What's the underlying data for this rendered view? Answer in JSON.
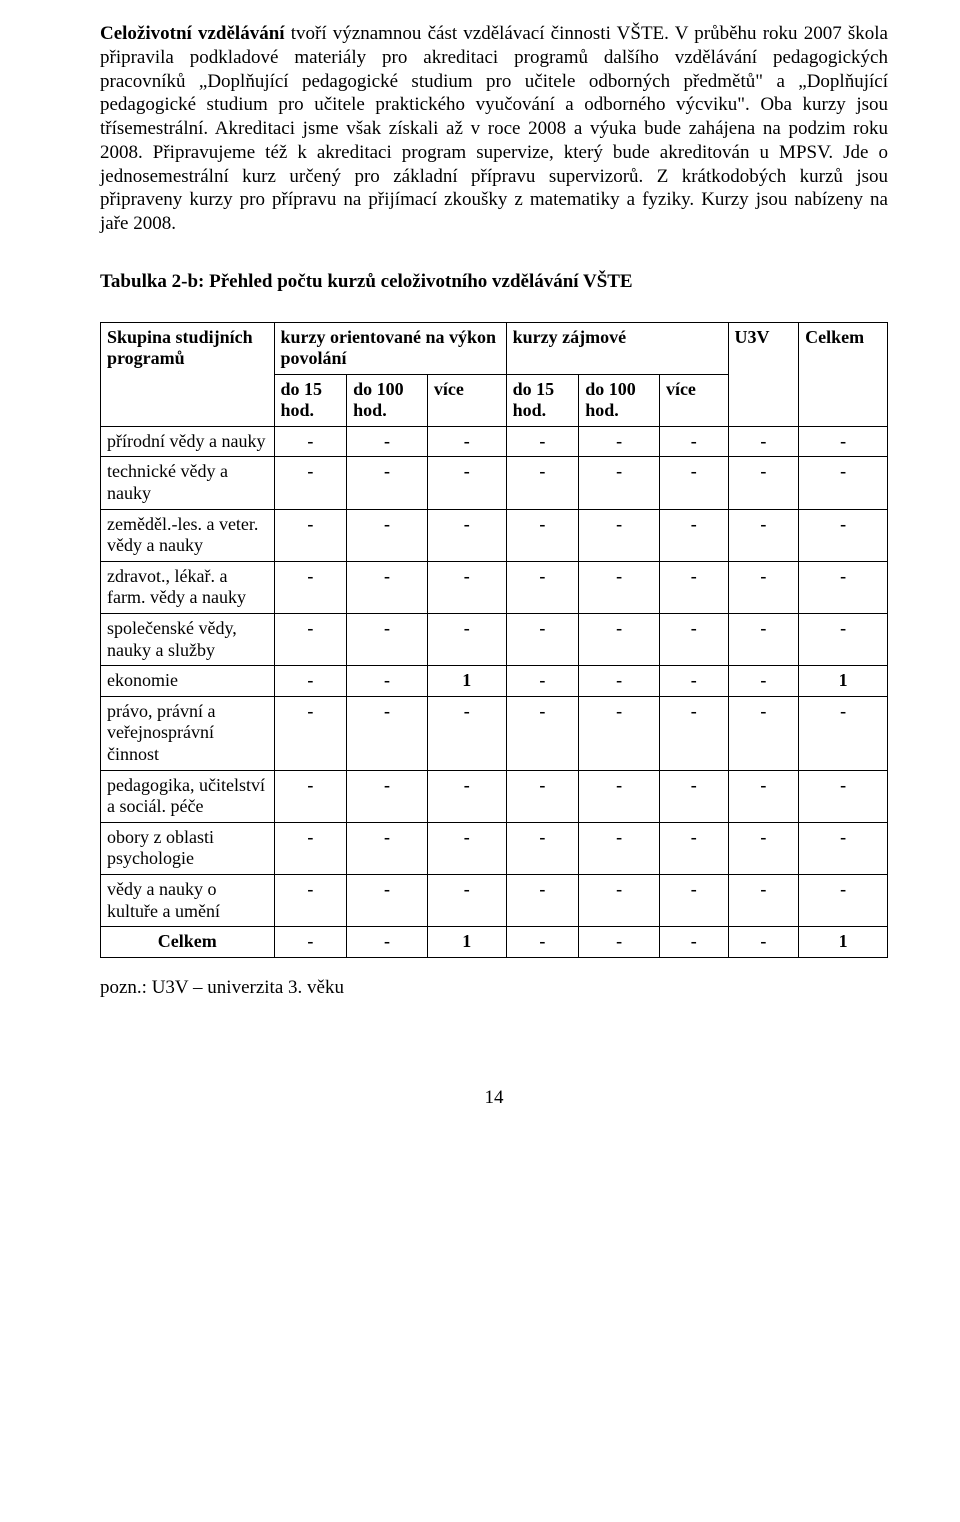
{
  "paragraph": {
    "lead_bold": "Celoživotní vzdělávání",
    "rest": " tvoří významnou část vzdělávací činnosti VŠTE. V průběhu roku 2007 škola připravila podkladové materiály pro akreditaci programů dalšího vzdělávání pedagogických pracovníků „Doplňující pedagogické studium pro učitele odborných předmětů\" a „Doplňující pedagogické studium pro učitele praktického vyučování a odborného výcviku\". Oba kurzy jsou třísemestrální. Akreditaci jsme však získali až v roce 2008 a výuka bude zahájena na podzim roku 2008. Připravujeme též k akreditaci program supervize, který bude akreditován u MPSV. Jde o jednosemestrální kurz určený pro základní přípravu supervizorů. Z krátkodobých kurzů jsou připraveny kurzy pro přípravu na přijímací zkoušky z matematiky a fyziky. Kurzy jsou nabízeny na jaře 2008."
  },
  "table_caption": "Tabulka 2-b: Přehled počtu kurzů celoživotního vzdělávání VŠTE",
  "headers": {
    "col_group": "Skupina studijních programů",
    "col_vykon": "kurzy orientované na výkon povolání",
    "col_zajm": "kurzy zájmové",
    "col_u3v": "U3V",
    "col_total": "Celkem",
    "sub_do15": "do 15 hod.",
    "sub_do100": "do 100 hod.",
    "sub_vice": "více"
  },
  "rows": [
    {
      "label": "přírodní vědy a nauky",
      "vals": [
        "-",
        "-",
        "-",
        "-",
        "-",
        "-",
        "-",
        "-"
      ]
    },
    {
      "label": "technické vědy a nauky",
      "vals": [
        "-",
        "-",
        "-",
        "-",
        "-",
        "-",
        "-",
        "-"
      ]
    },
    {
      "label": "zeměděl.-les. a veter. vědy a nauky",
      "vals": [
        "-",
        "-",
        "-",
        "-",
        "-",
        "-",
        "-",
        "-"
      ]
    },
    {
      "label": "zdravot., lékař. a farm. vědy a nauky",
      "vals": [
        "-",
        "-",
        "-",
        "-",
        "-",
        "-",
        "-",
        "-"
      ]
    },
    {
      "label": "společenské vědy, nauky a služby",
      "vals": [
        "-",
        "-",
        "-",
        "-",
        "-",
        "-",
        "-",
        "-"
      ]
    },
    {
      "label": "ekonomie",
      "vals": [
        "-",
        "-",
        "1",
        "-",
        "-",
        "-",
        "-",
        "1"
      ]
    },
    {
      "label": "právo, právní a veřejnosprávní činnost",
      "vals": [
        "-",
        "-",
        "-",
        "-",
        "-",
        "-",
        "-",
        "-"
      ]
    },
    {
      "label": "pedagogika, učitelství a sociál. péče",
      "vals": [
        "-",
        "-",
        "-",
        "-",
        "-",
        "-",
        "-",
        "-"
      ]
    },
    {
      "label": "obory z oblasti psychologie",
      "vals": [
        "-",
        "-",
        "-",
        "-",
        "-",
        "-",
        "-",
        "-"
      ]
    },
    {
      "label": "vědy a nauky o kultuře a umění",
      "vals": [
        "-",
        "-",
        "-",
        "-",
        "-",
        "-",
        "-",
        "-"
      ]
    }
  ],
  "total_row": {
    "label": "Celkem",
    "vals": [
      "-",
      "-",
      "1",
      "-",
      "-",
      "-",
      "-",
      "1"
    ]
  },
  "footnote": "pozn.: U3V – univerzita 3. věku",
  "page_number": "14"
}
